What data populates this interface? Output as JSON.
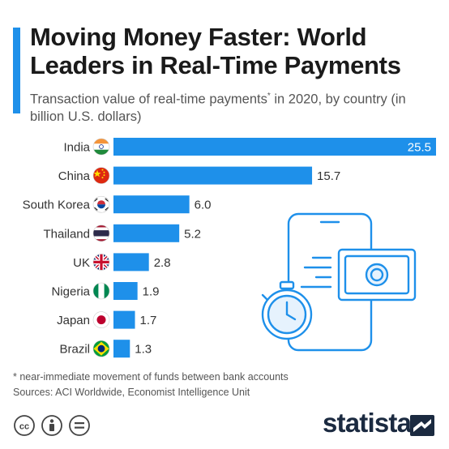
{
  "header": {
    "title": "Moving Money Faster: World Leaders in Real-Time Payments",
    "subtitle_main": "Transaction value of real-time payments",
    "subtitle_mark": "*",
    "subtitle_rest": " in 2020, by country (in billion U.S. dollars)"
  },
  "chart_data": {
    "type": "bar",
    "orientation": "horizontal",
    "title": "Moving Money Faster: World Leaders in Real-Time Payments",
    "subtitle": "Transaction value of real-time payments* in 2020, by country (in billion U.S. dollars)",
    "categories": [
      "India",
      "China",
      "South Korea",
      "Thailand",
      "UK",
      "Nigeria",
      "Japan",
      "Brazil"
    ],
    "values": [
      25.5,
      15.7,
      6.0,
      5.2,
      2.8,
      1.9,
      1.7,
      1.3
    ],
    "value_labels": [
      "25.5",
      "15.7",
      "6.0",
      "5.2",
      "2.8",
      "1.9",
      "1.7",
      "1.3"
    ],
    "xlim": [
      0,
      25.5
    ],
    "bar_color": "#1e90ea",
    "grid": false,
    "legend": "none"
  },
  "flags": [
    "india-flag-icon",
    "china-flag-icon",
    "south-korea-flag-icon",
    "thailand-flag-icon",
    "uk-flag-icon",
    "nigeria-flag-icon",
    "japan-flag-icon",
    "brazil-flag-icon"
  ],
  "footer": {
    "footnote": "* near-immediate movement of funds between bank accounts",
    "sources": "Sources: ACI Worldwide, Economist Intelligence Unit",
    "brand": "statista",
    "license_icons": [
      "cc-icon",
      "attribution-icon",
      "no-derivatives-icon"
    ]
  },
  "colors": {
    "accent": "#1e90ea",
    "brand_dark": "#1b2a40",
    "illustration": "#1e90ea"
  }
}
